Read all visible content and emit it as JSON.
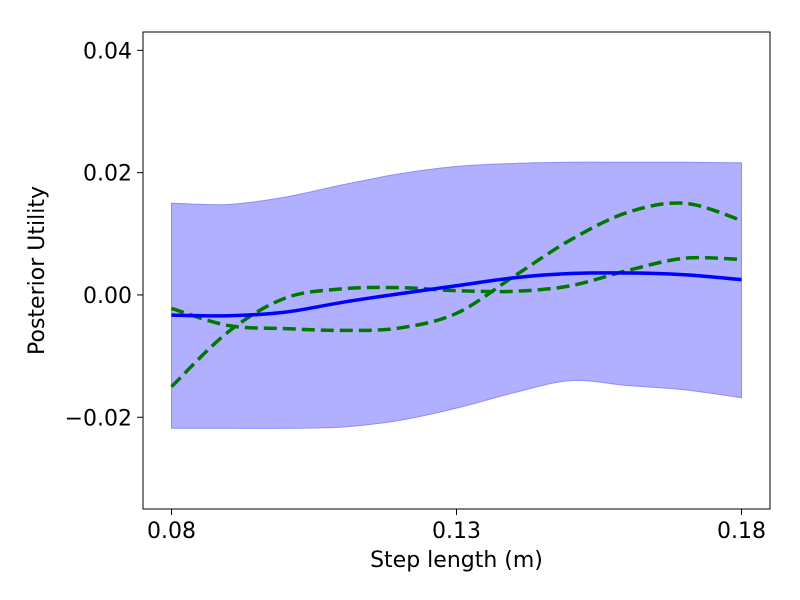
{
  "chart_data": {
    "type": "line",
    "title": "",
    "xlabel": "Step length (m)",
    "ylabel": "Posterior Utility",
    "xlim": [
      0.075,
      0.185
    ],
    "ylim": [
      -0.035,
      0.043
    ],
    "grid": false,
    "legend": "none",
    "xticks": [
      0.08,
      0.13,
      0.18
    ],
    "xtick_labels": [
      "0.08",
      "0.13",
      "0.18"
    ],
    "yticks": [
      -0.02,
      0.0,
      0.02,
      0.04
    ],
    "ytick_labels": [
      "−0.02",
      "0.00",
      "0.02",
      "0.04"
    ],
    "x": [
      0.08,
      0.09,
      0.1,
      0.11,
      0.12,
      0.13,
      0.14,
      0.15,
      0.16,
      0.17,
      0.18
    ],
    "band": {
      "color": "#b0b0ff",
      "edge_color": "#8c8cff",
      "upper": [
        0.015,
        0.0148,
        0.016,
        0.018,
        0.0198,
        0.021,
        0.0215,
        0.0217,
        0.0217,
        0.0217,
        0.0216
      ],
      "lower": [
        -0.0218,
        -0.0218,
        -0.0218,
        -0.0216,
        -0.0205,
        -0.0185,
        -0.016,
        -0.014,
        -0.0148,
        -0.0155,
        -0.0168
      ]
    },
    "series": [
      {
        "style": "solid",
        "color": "#0000ff",
        "values": [
          -0.0033,
          -0.0034,
          -0.0028,
          -0.0012,
          0.0002,
          0.0015,
          0.0028,
          0.0035,
          0.0036,
          0.0033,
          0.0025
        ]
      },
      {
        "style": "dashed",
        "color": "#007800",
        "values": [
          -0.0022,
          -0.005,
          -0.0055,
          -0.0058,
          -0.0054,
          -0.003,
          0.003,
          0.009,
          0.0135,
          0.015,
          0.0122
        ]
      },
      {
        "style": "dashed",
        "color": "#007800",
        "values": [
          -0.015,
          -0.006,
          -0.0005,
          0.001,
          0.0012,
          0.0007,
          0.0006,
          0.0015,
          0.004,
          0.006,
          0.0058
        ]
      }
    ]
  }
}
